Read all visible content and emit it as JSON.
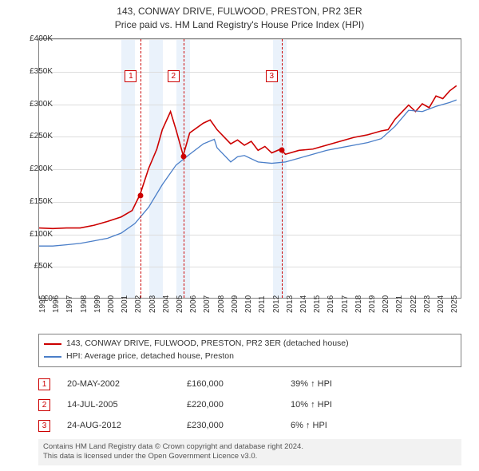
{
  "title": {
    "line1": "143, CONWAY DRIVE, FULWOOD, PRESTON, PR2 3ER",
    "line2": "Price paid vs. HM Land Registry's House Price Index (HPI)"
  },
  "chart": {
    "type": "line",
    "background_color": "#ffffff",
    "border_color": "#808080",
    "grid_color": "#dddddd",
    "shade_color": "#eaf2fb",
    "x_range": [
      1995,
      2025.8
    ],
    "y_range": [
      0,
      400000
    ],
    "y_ticks": [
      0,
      50000,
      100000,
      150000,
      200000,
      250000,
      300000,
      350000,
      400000
    ],
    "y_tick_labels": [
      "£0",
      "£50K",
      "£100K",
      "£150K",
      "£200K",
      "£250K",
      "£300K",
      "£350K",
      "£400K"
    ],
    "x_ticks": [
      1995,
      1996,
      1997,
      1998,
      1999,
      2000,
      2001,
      2002,
      2003,
      2004,
      2005,
      2006,
      2007,
      2008,
      2009,
      2010,
      2011,
      2012,
      2013,
      2014,
      2015,
      2016,
      2017,
      2018,
      2019,
      2020,
      2021,
      2022,
      2023,
      2024,
      2025
    ],
    "shade_years": [
      [
        2001,
        2002
      ],
      [
        2003,
        2004
      ],
      [
        2005,
        2006
      ],
      [
        2012,
        2013
      ]
    ],
    "vlines_years": [
      2002.38,
      2005.53,
      2012.65
    ],
    "marker_boxes": [
      {
        "label": "1",
        "x_year": 2001.3
      },
      {
        "label": "2",
        "x_year": 2004.4
      },
      {
        "label": "3",
        "x_year": 2011.55
      }
    ],
    "sale_points": [
      {
        "x_year": 2002.38,
        "y_value": 160000
      },
      {
        "x_year": 2005.53,
        "y_value": 220000
      },
      {
        "x_year": 2012.65,
        "y_value": 230000
      }
    ],
    "series": [
      {
        "name": "property",
        "color": "#cc0000",
        "width": 1.6,
        "data": [
          [
            1995,
            108000
          ],
          [
            1996,
            107000
          ],
          [
            1997,
            108000
          ],
          [
            1998,
            108000
          ],
          [
            1999,
            112000
          ],
          [
            2000,
            118000
          ],
          [
            2001,
            125000
          ],
          [
            2001.8,
            135000
          ],
          [
            2002.38,
            160000
          ],
          [
            2003,
            200000
          ],
          [
            2003.6,
            230000
          ],
          [
            2004,
            260000
          ],
          [
            2004.6,
            288000
          ],
          [
            2005,
            260000
          ],
          [
            2005.53,
            220000
          ],
          [
            2006,
            255000
          ],
          [
            2007,
            270000
          ],
          [
            2007.5,
            275000
          ],
          [
            2008,
            260000
          ],
          [
            2009,
            238000
          ],
          [
            2009.5,
            244000
          ],
          [
            2010,
            236000
          ],
          [
            2010.5,
            242000
          ],
          [
            2011,
            228000
          ],
          [
            2011.5,
            234000
          ],
          [
            2012,
            224000
          ],
          [
            2012.65,
            230000
          ],
          [
            2013,
            222000
          ],
          [
            2014,
            228000
          ],
          [
            2015,
            230000
          ],
          [
            2016,
            236000
          ],
          [
            2017,
            242000
          ],
          [
            2018,
            248000
          ],
          [
            2019,
            252000
          ],
          [
            2020,
            258000
          ],
          [
            2020.5,
            260000
          ],
          [
            2021,
            276000
          ],
          [
            2022,
            298000
          ],
          [
            2022.5,
            288000
          ],
          [
            2023,
            300000
          ],
          [
            2023.5,
            294000
          ],
          [
            2024,
            312000
          ],
          [
            2024.5,
            308000
          ],
          [
            2025,
            320000
          ],
          [
            2025.5,
            328000
          ]
        ]
      },
      {
        "name": "hpi",
        "color": "#4a7ec8",
        "width": 1.3,
        "data": [
          [
            1995,
            80000
          ],
          [
            1996,
            80000
          ],
          [
            1997,
            82000
          ],
          [
            1998,
            84000
          ],
          [
            1999,
            88000
          ],
          [
            2000,
            92000
          ],
          [
            2001,
            100000
          ],
          [
            2002,
            115000
          ],
          [
            2003,
            140000
          ],
          [
            2004,
            175000
          ],
          [
            2005,
            205000
          ],
          [
            2006,
            222000
          ],
          [
            2007,
            238000
          ],
          [
            2007.8,
            245000
          ],
          [
            2008,
            232000
          ],
          [
            2009,
            210000
          ],
          [
            2009.5,
            218000
          ],
          [
            2010,
            220000
          ],
          [
            2011,
            210000
          ],
          [
            2012,
            208000
          ],
          [
            2013,
            210000
          ],
          [
            2014,
            216000
          ],
          [
            2015,
            222000
          ],
          [
            2016,
            228000
          ],
          [
            2017,
            232000
          ],
          [
            2018,
            236000
          ],
          [
            2019,
            240000
          ],
          [
            2020,
            246000
          ],
          [
            2021,
            265000
          ],
          [
            2022,
            290000
          ],
          [
            2023,
            288000
          ],
          [
            2024,
            296000
          ],
          [
            2025,
            302000
          ],
          [
            2025.5,
            306000
          ]
        ]
      }
    ]
  },
  "legend": {
    "items": [
      {
        "color": "#cc0000",
        "label": "143, CONWAY DRIVE, FULWOOD, PRESTON, PR2 3ER (detached house)"
      },
      {
        "color": "#4a7ec8",
        "label": "HPI: Average price, detached house, Preston"
      }
    ]
  },
  "sales": [
    {
      "num": "1",
      "date": "20-MAY-2002",
      "price": "£160,000",
      "pct": "39% ↑ HPI"
    },
    {
      "num": "2",
      "date": "14-JUL-2005",
      "price": "£220,000",
      "pct": "10% ↑ HPI"
    },
    {
      "num": "3",
      "date": "24-AUG-2012",
      "price": "£230,000",
      "pct": "6% ↑ HPI"
    }
  ],
  "footer": {
    "line1": "Contains HM Land Registry data © Crown copyright and database right 2024.",
    "line2": "This data is licensed under the Open Government Licence v3.0."
  },
  "colors": {
    "marker_border": "#cc0000",
    "footer_bg": "#f2f2f2"
  }
}
